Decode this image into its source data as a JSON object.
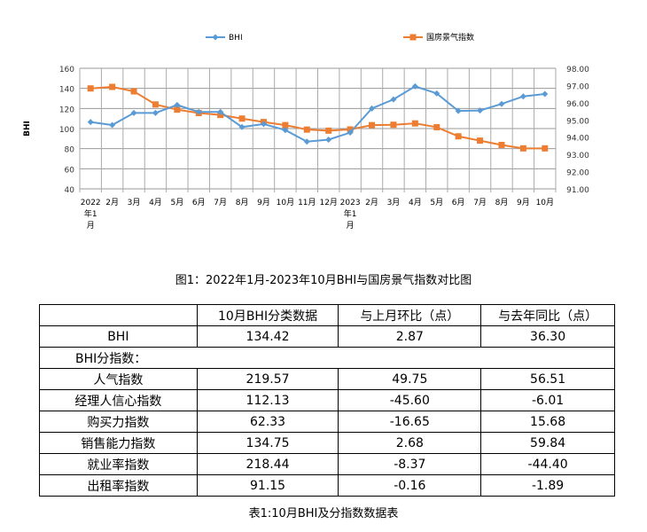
{
  "chart_data": {
    "type": "line",
    "categories": [
      "2022年1月",
      "2月",
      "3月",
      "4月",
      "5月",
      "6月",
      "7月",
      "8月",
      "9月",
      "10月",
      "11月",
      "12月",
      "2023年1月",
      "2月",
      "3月",
      "4月",
      "5月",
      "6月",
      "7月",
      "8月",
      "9月",
      "10月"
    ],
    "series": [
      {
        "name": "BHI",
        "axis": "left",
        "color": "#5b9bd5",
        "marker": "diamond",
        "values": [
          106.5,
          103.5,
          115.5,
          115.5,
          123.5,
          116.5,
          116.5,
          101.5,
          104.5,
          98.5,
          87,
          89,
          96,
          120,
          129,
          142,
          135,
          117.5,
          118,
          124.5,
          132,
          134.42
        ]
      },
      {
        "name": "国房景气指数",
        "axis": "right",
        "color": "#ed7d31",
        "marker": "square",
        "values": [
          96.83,
          96.92,
          96.66,
          95.9,
          95.6,
          95.4,
          95.29,
          95.08,
          94.88,
          94.7,
          94.44,
          94.38,
          94.45,
          94.7,
          94.72,
          94.8,
          94.58,
          94.05,
          93.8,
          93.55,
          93.35,
          93.35
        ]
      }
    ],
    "ylabel": "BHI",
    "ylim": [
      40,
      160
    ],
    "yticks": [
      "40",
      "60",
      "80",
      "100",
      "120",
      "140",
      "160"
    ],
    "y2lim": [
      91,
      98
    ],
    "y2ticks": [
      "91.00",
      "92.00",
      "93.00",
      "94.00",
      "95.00",
      "96.00",
      "97.00",
      "98.00"
    ],
    "grid": true,
    "legend": "top"
  },
  "figure_caption": "图1：2022年1月-2023年10月BHI与国房景气指数对比图",
  "table": {
    "header": [
      "",
      "10月BHI分类数据",
      "与上月环比（点）",
      "与去年同比（点）"
    ],
    "bhi_row": [
      "BHI",
      "134.42",
      "2.87",
      "36.30"
    ],
    "section_label": "BHI分指数：",
    "rows": [
      [
        "人气指数",
        "219.57",
        "49.75",
        "56.51"
      ],
      [
        "经理人信心指数",
        "112.13",
        "-45.60",
        "-6.01"
      ],
      [
        "购买力指数",
        "62.33",
        "-16.65",
        "15.68"
      ],
      [
        "销售能力指数",
        "134.75",
        "2.68",
        "59.84"
      ],
      [
        "就业率指数",
        "218.44",
        "-8.37",
        "-44.40"
      ],
      [
        "出租率指数",
        "91.15",
        "-0.16",
        "-1.89"
      ]
    ],
    "caption": "表1:10月BHI及分指数数据表"
  }
}
